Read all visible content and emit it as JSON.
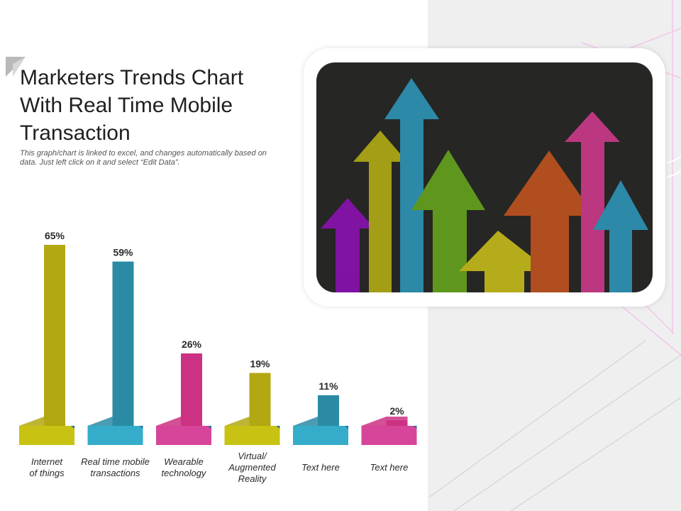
{
  "slide": {
    "title": "Marketers Trends Chart\nWith Real Time Mobile\nTransaction",
    "subtitle": "This graph/chart is linked to excel, and changes automatically based on data. Just left click on it and select “Edit Data”."
  },
  "colors": {
    "olive": "#b2a812",
    "teal": "#2b8ba4",
    "magenta": "#cc3183",
    "olive_base": "#c8c213",
    "teal_base": "#35acc9",
    "magenta_base": "#d6459a",
    "panel_bg": "#efeff0",
    "screen_bg": "#262624"
  },
  "illustration": {
    "description_icon": "growth-arrows-image",
    "arrows": [
      {
        "color": "#9010b8"
      },
      {
        "color": "#b9b414"
      },
      {
        "color": "#2e9bbf"
      },
      {
        "color": "#6aab1e"
      },
      {
        "color": "#cfc41a"
      },
      {
        "color": "#c9561f"
      },
      {
        "color": "#d63b91"
      },
      {
        "color": "#2e9bbf"
      }
    ]
  },
  "chart_data": {
    "type": "bar",
    "categories": [
      "Internet\nof things",
      "Real time mobile\ntransactions",
      "Wearable\ntechnology",
      "Virtual/\nAugmented\nReality",
      "Text here",
      "Text here"
    ],
    "values": [
      65,
      59,
      26,
      19,
      11,
      2
    ],
    "data_labels": [
      "65%",
      "59%",
      "26%",
      "19%",
      "11%",
      "2%"
    ],
    "bar_colors": [
      "olive",
      "teal",
      "magenta",
      "olive",
      "teal",
      "magenta"
    ],
    "ylim": [
      0,
      65
    ],
    "grid": false,
    "legend": "none",
    "xlabel": "",
    "ylabel": ""
  }
}
